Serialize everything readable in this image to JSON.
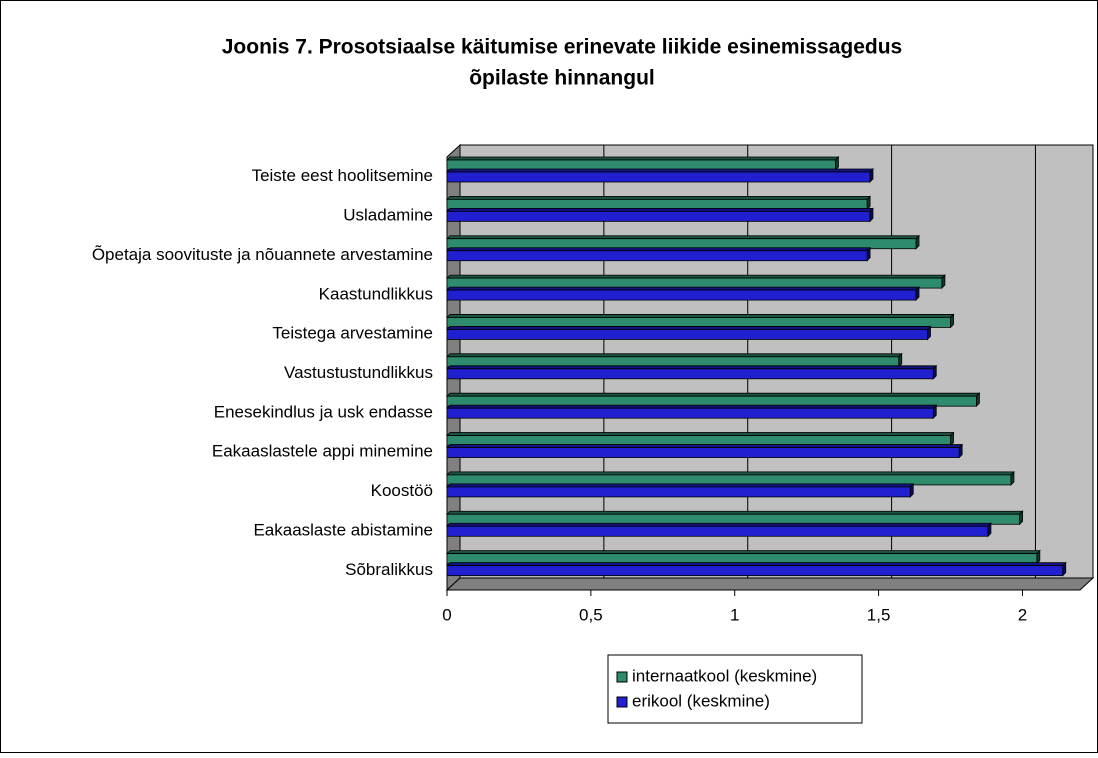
{
  "chart_data": {
    "type": "barh",
    "title": [
      "Joonis 7. Prosotsiaalse käitumise erinevate liikide esinemissagedus",
      "õpilaste hinnangul"
    ],
    "categories": [
      "Teiste eest hoolitsemine",
      "Usladamine",
      "Õpetaja soovituste ja nõuannete arvestamine",
      "Kaastundlikkus",
      "Teistega arvestamine",
      "Vastustustundlikkus",
      "Enesekindlus ja usk endasse",
      "Eakaaslastele appi minemine",
      "Koostöö",
      "Eakaaslaste abistamine",
      "Sõbralikkus"
    ],
    "series": [
      {
        "name": "internaatkool (keskmine)",
        "color": "#2e8b6e",
        "values": [
          1.35,
          1.46,
          1.63,
          1.72,
          1.75,
          1.57,
          1.84,
          1.75,
          1.96,
          1.99,
          2.05
        ]
      },
      {
        "name": "erikool (keskmine)",
        "color": "#2020d0",
        "values": [
          1.47,
          1.47,
          1.46,
          1.63,
          1.67,
          1.69,
          1.69,
          1.78,
          1.61,
          1.88,
          2.14
        ]
      }
    ],
    "xlim": [
      0,
      2.2
    ],
    "xticks": [
      0,
      {
        "value": 0.5,
        "label": "0,5"
      },
      1,
      {
        "value": 1.5,
        "label": "1,5"
      },
      2
    ],
    "grid": true
  }
}
